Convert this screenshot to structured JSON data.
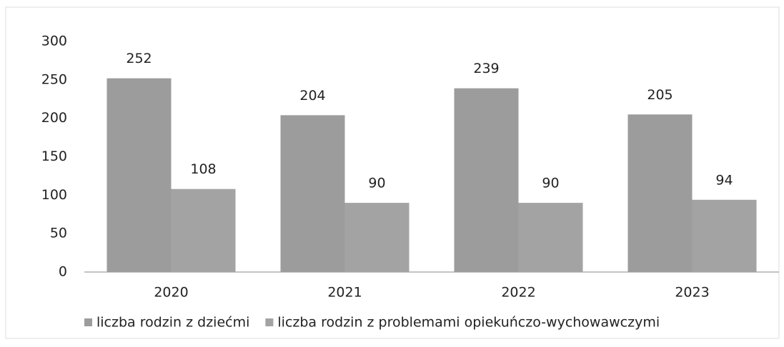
{
  "chart_data": {
    "type": "bar",
    "categories": [
      "2020",
      "2021",
      "2022",
      "2023"
    ],
    "series": [
      {
        "name": "liczba rodzin z dziećmi",
        "color": "#9c9c9c",
        "values": [
          252,
          204,
          239,
          205
        ]
      },
      {
        "name": "liczba rodzin z problemami opiekuńczo-wychowawczymi",
        "color": "#a3a3a3",
        "values": [
          108,
          90,
          90,
          94
        ]
      }
    ],
    "ylim": [
      0,
      300
    ],
    "yticks": [
      0,
      50,
      100,
      150,
      200,
      250,
      300
    ],
    "grid": false,
    "legend": "bottom"
  }
}
